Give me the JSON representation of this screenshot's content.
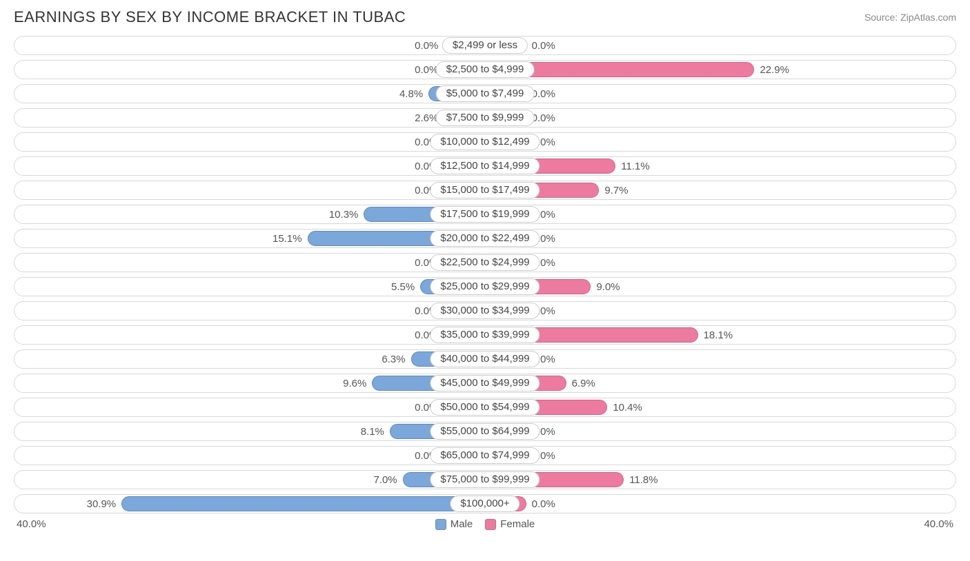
{
  "title": "EARNINGS BY SEX BY INCOME BRACKET IN TUBAC",
  "source": "Source: ZipAtlas.com",
  "chart": {
    "type": "diverging-bar",
    "max_percent": 40.0,
    "min_bar_percent": 3.5,
    "male_color": "#7ba7db",
    "male_border": "#5a8bc4",
    "female_color": "#ed7ba0",
    "female_border": "#d95f89",
    "row_border_color": "#d8d8d8",
    "background_color": "#ffffff",
    "label_fontsize": 15,
    "title_fontsize": 22,
    "rows": [
      {
        "category": "$2,499 or less",
        "male": 0.0,
        "female": 0.0
      },
      {
        "category": "$2,500 to $4,999",
        "male": 0.0,
        "female": 22.9
      },
      {
        "category": "$5,000 to $7,499",
        "male": 4.8,
        "female": 0.0
      },
      {
        "category": "$7,500 to $9,999",
        "male": 2.6,
        "female": 0.0
      },
      {
        "category": "$10,000 to $12,499",
        "male": 0.0,
        "female": 0.0
      },
      {
        "category": "$12,500 to $14,999",
        "male": 0.0,
        "female": 11.1
      },
      {
        "category": "$15,000 to $17,499",
        "male": 0.0,
        "female": 9.7
      },
      {
        "category": "$17,500 to $19,999",
        "male": 10.3,
        "female": 0.0
      },
      {
        "category": "$20,000 to $22,499",
        "male": 15.1,
        "female": 0.0
      },
      {
        "category": "$22,500 to $24,999",
        "male": 0.0,
        "female": 0.0
      },
      {
        "category": "$25,000 to $29,999",
        "male": 5.5,
        "female": 9.0
      },
      {
        "category": "$30,000 to $34,999",
        "male": 0.0,
        "female": 0.0
      },
      {
        "category": "$35,000 to $39,999",
        "male": 0.0,
        "female": 18.1
      },
      {
        "category": "$40,000 to $44,999",
        "male": 6.3,
        "female": 0.0
      },
      {
        "category": "$45,000 to $49,999",
        "male": 9.6,
        "female": 6.9
      },
      {
        "category": "$50,000 to $54,999",
        "male": 0.0,
        "female": 10.4
      },
      {
        "category": "$55,000 to $64,999",
        "male": 8.1,
        "female": 0.0
      },
      {
        "category": "$65,000 to $74,999",
        "male": 0.0,
        "female": 0.0
      },
      {
        "category": "$75,000 to $99,999",
        "male": 7.0,
        "female": 11.8
      },
      {
        "category": "$100,000+",
        "male": 30.9,
        "female": 0.0
      }
    ],
    "axis_left_label": "40.0%",
    "axis_right_label": "40.0%",
    "legend": {
      "male_label": "Male",
      "female_label": "Female"
    }
  }
}
